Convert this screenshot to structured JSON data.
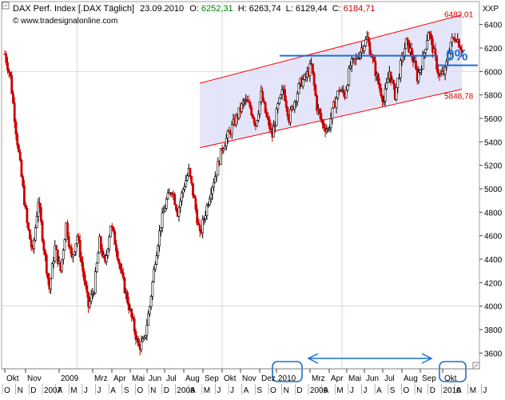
{
  "header": {
    "name": "DAX Perf. Index [.DAX Täglich]",
    "date": "23.09.2010",
    "o_label": "O:",
    "o_value": "6252,31",
    "h_label": "H:",
    "h_value": "6263,74",
    "l_label": "L:",
    "l_value": "6129,44",
    "c_label": "C:",
    "c_value": "6184,71",
    "website": "© www.tradesignalonline.com"
  },
  "axis_unit": "XXP",
  "colors": {
    "up": "#000000",
    "down": "#cc0000",
    "open_green": "#008000",
    "close_red": "#cc0000",
    "channel_line": "#ff0000",
    "channel_fill": "#e0e0f8",
    "annotation_blue": "#1a6fd0",
    "grid": "#cfe0cf",
    "price_label_red": "#cc0000"
  },
  "chart_data": {
    "type": "candlestick",
    "title": "DAX Perf. Index [.DAX Täglich]",
    "ylim": [
      3500,
      6500
    ],
    "yticks": [
      3600,
      3800,
      4000,
      4200,
      4400,
      4600,
      4800,
      5000,
      5200,
      5400,
      5600,
      5800,
      6000,
      6200,
      6400
    ],
    "grid": true,
    "month_labels_top": [
      "Okt",
      "Nov",
      "2009",
      "Mrz",
      "Apr",
      "Mai",
      "Jun",
      "Jul",
      "Aug",
      "Sep",
      "Okt",
      "Nov",
      "Dez",
      "2010",
      "Mrz",
      "Apr",
      "Mai",
      "Jun",
      "Jul",
      "Aug",
      "Sep",
      "Okt"
    ],
    "month_labels_bottom": [
      "O",
      "N",
      "D",
      "2007",
      "A",
      "M",
      "J",
      "J",
      "A",
      "S",
      "O",
      "N",
      "D",
      "2008",
      "A",
      "M",
      "J",
      "J",
      "A",
      "S",
      "O",
      "N",
      "D",
      "2009",
      "A",
      "M",
      "J",
      "J",
      "A",
      "S",
      "O",
      "N",
      "D",
      "2010",
      "A",
      "M",
      "J"
    ],
    "price_path": [
      [
        0,
        6150
      ],
      [
        2,
        5950
      ],
      [
        4,
        5500
      ],
      [
        6,
        5100
      ],
      [
        8,
        4700
      ],
      [
        10,
        4450
      ],
      [
        12,
        4900
      ],
      [
        14,
        4500
      ],
      [
        16,
        4150
      ],
      [
        18,
        4500
      ],
      [
        20,
        4300
      ],
      [
        22,
        4700
      ],
      [
        24,
        4400
      ],
      [
        26,
        4600
      ],
      [
        28,
        4300
      ],
      [
        30,
        4000
      ],
      [
        32,
        4150
      ],
      [
        34,
        4550
      ],
      [
        36,
        4350
      ],
      [
        38,
        4700
      ],
      [
        40,
        4500
      ],
      [
        42,
        4250
      ],
      [
        44,
        4050
      ],
      [
        46,
        3850
      ],
      [
        48,
        3650
      ],
      [
        50,
        3700
      ],
      [
        52,
        4000
      ],
      [
        54,
        4400
      ],
      [
        56,
        4700
      ],
      [
        58,
        4900
      ],
      [
        60,
        5000
      ],
      [
        62,
        4800
      ],
      [
        64,
        5000
      ],
      [
        66,
        5150
      ],
      [
        68,
        4900
      ],
      [
        70,
        4600
      ],
      [
        72,
        4800
      ],
      [
        74,
        5000
      ],
      [
        76,
        5150
      ],
      [
        78,
        5350
      ],
      [
        80,
        5450
      ],
      [
        82,
        5550
      ],
      [
        84,
        5650
      ],
      [
        86,
        5750
      ],
      [
        88,
        5700
      ],
      [
        90,
        5550
      ],
      [
        92,
        5800
      ],
      [
        94,
        5600
      ],
      [
        96,
        5450
      ],
      [
        98,
        5700
      ],
      [
        100,
        5850
      ],
      [
        102,
        5600
      ],
      [
        104,
        5750
      ],
      [
        106,
        5900
      ],
      [
        108,
        5950
      ],
      [
        110,
        6050
      ],
      [
        112,
        5700
      ],
      [
        114,
        5550
      ],
      [
        116,
        5500
      ],
      [
        118,
        5700
      ],
      [
        120,
        5850
      ],
      [
        122,
        5800
      ],
      [
        124,
        6050
      ],
      [
        126,
        6100
      ],
      [
        128,
        6200
      ],
      [
        130,
        6280
      ],
      [
        132,
        6100
      ],
      [
        134,
        5900
      ],
      [
        136,
        5750
      ],
      [
        138,
        6000
      ],
      [
        140,
        5800
      ],
      [
        142,
        6050
      ],
      [
        144,
        6250
      ],
      [
        146,
        6150
      ],
      [
        148,
        5950
      ],
      [
        150,
        6100
      ],
      [
        152,
        6350
      ],
      [
        154,
        6150
      ],
      [
        156,
        5950
      ],
      [
        158,
        6000
      ],
      [
        160,
        6250
      ],
      [
        162,
        6300
      ],
      [
        164,
        6184
      ]
    ],
    "channel": {
      "upper_start": [
        70,
        5900
      ],
      "upper_end": [
        164,
        6482.01
      ],
      "lower_start": [
        70,
        5350
      ],
      "lower_end": [
        164,
        5848.78
      ],
      "upper_label": "6482,01",
      "lower_label": "5848,78"
    },
    "horizontal_level": {
      "label": "0%",
      "value": 6080
    },
    "highlight_labels": [
      "2010",
      "Okt"
    ]
  }
}
